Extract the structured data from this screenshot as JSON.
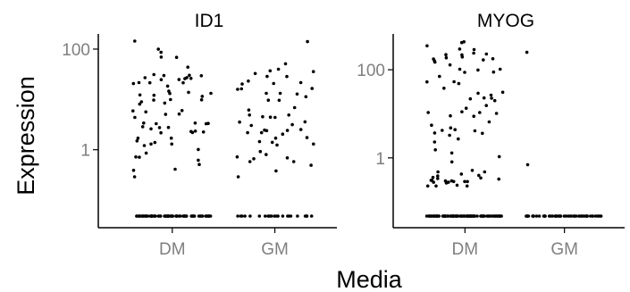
{
  "chart_data": {
    "type": "scatter",
    "ylabel": "Expression",
    "xlabel": "Media",
    "y_scale": "log10",
    "x_categories": [
      "DM",
      "GM"
    ],
    "grid": false,
    "legend": "none",
    "colors": {
      "points": "#000000",
      "tick_text": "#7f7f7f",
      "axis": "#000000"
    },
    "panels": [
      {
        "title": "ID1",
        "ylim": [
          0.05,
          200
        ],
        "y_ticks": [
          {
            "value": 1,
            "label": "1"
          },
          {
            "value": 100,
            "label": "100"
          }
        ],
        "groups": {
          "DM": {
            "zeros": 80,
            "values": [
              68.5,
              144.2,
              99.6,
              86.3,
              21.4,
              29.8,
              27.1,
              26.1,
              31.2,
              3.34,
              20.6,
              69.5,
              24.8,
              18.4,
              12.3,
              13.2,
              14.6,
              9.79,
              5.12,
              13.1,
              2.87,
              2.35,
              2.25,
              9.67,
              4.39,
              27.0,
              13.8,
              43.8,
              25.8,
              29.6,
              1.3,
              1.01,
              0.86,
              0.72,
              0.71,
              0.29,
              0.41,
              0.62,
              0.51,
              1.21,
              1.3,
              1.5,
              1.39,
              1.7,
              1.7,
              2.17,
              2.6,
              3.29,
              3.39,
              3.39,
              5.66,
              5.9,
              6.01,
              8.06,
              8.47,
              8.95,
              9.94,
              5.04,
              0.39,
              2.2,
              2.78,
              2.3,
              2.75,
              3.28,
              30.2,
              21.4,
              12.1,
              24.7,
              21.6,
              11.5
            ]
          },
          "GM": {
            "zeros": 25,
            "values": [
              141.0,
              39.8,
              35.6,
              51.0,
              21.6,
              37.0,
              16.2,
              16.5,
              9.61,
              28.5,
              13.2,
              6.87,
              12.8,
              4.39,
              4.44,
              3.59,
              3.15,
              3.54,
              2.45,
              1.4,
              1.3,
              2.41,
              2.18,
              4.9,
              6.16,
              3.03,
              1.24,
              0.92,
              0.72,
              0.49,
              0.38,
              0.29,
              0.8,
              0.58,
              0.69,
              0.66,
              0.58,
              1.45,
              1.74,
              2.04,
              2.4,
              2.52,
              4.9,
              4.53,
              9.65,
              11.3,
              13.2,
              20.2,
              23.1,
              20.7,
              32.7,
              28.6,
              1.7,
              2.18,
              15.9
            ]
          }
        }
      },
      {
        "title": "MYOG",
        "ylim": [
          0.05,
          650
        ],
        "y_ticks": [
          {
            "value": 1,
            "label": "1"
          },
          {
            "value": 100,
            "label": "100"
          }
        ],
        "groups": {
          "DM": {
            "zeros": 95,
            "values": [
              432.0,
              413.0,
              349.0,
              287.0,
              160.0,
              176.0,
              129.0,
              103.0,
              98.6,
              103.0,
              88.5,
              70.5,
              53.1,
              26.6,
              30.8,
              22.6,
              22.9,
              21.9,
              10.2,
              10.7,
              8.99,
              8.81,
              5.53,
              4.12,
              4.36,
              3.26,
              1.07,
              0.52,
              0.39,
              0.4,
              0.35,
              0.23,
              0.3,
              0.23,
              0.3,
              0.31,
              0.27,
              0.29,
              0.29,
              0.23,
              0.33,
              0.28,
              0.29,
              0.36,
              0.34,
              0.48,
              0.81,
              1.52,
              1.29,
              2.29,
              2.69,
              4.79,
              6.55,
              11.1,
              13.4,
              19.9,
              29.3,
              53.5,
              167.0,
              195.0,
              220.0,
              227.0,
              187.0,
              238.0,
              295.0,
              218.0,
              178.0,
              149.0,
              87.2,
              48.6,
              38.1,
              15.4,
              10.7,
              4.21,
              3.61,
              3.68,
              0.43,
              0.48,
              0.31,
              0.24,
              0.28
            ]
          },
          "GM": {
            "zeros": 55,
            "values": [
              248.0,
              0.7
            ]
          }
        }
      }
    ]
  }
}
